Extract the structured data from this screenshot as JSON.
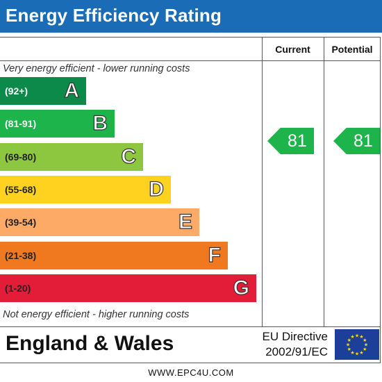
{
  "title": "Energy Efficiency Rating",
  "columns": {
    "current": "Current",
    "potential": "Potential"
  },
  "top_note": "Very energy efficient - lower running costs",
  "bottom_note": "Not energy efficient - higher running costs",
  "footer": {
    "country": "England & Wales",
    "directive_line1": "EU Directive",
    "directive_line2": "2002/91/EC",
    "website": "WWW.EPC4U.COM"
  },
  "chart_data": {
    "type": "bar",
    "categories": [
      "A",
      "B",
      "C",
      "D",
      "E",
      "F",
      "G"
    ],
    "bands": [
      {
        "letter": "A",
        "range": "(92+)",
        "color": "#0c8a4a",
        "text_color": "#ffffff"
      },
      {
        "letter": "B",
        "range": "(81-91)",
        "color": "#1cb44b",
        "text_color": "#ffffff"
      },
      {
        "letter": "C",
        "range": "(69-80)",
        "color": "#8dc63f",
        "text_color": "#222222"
      },
      {
        "letter": "D",
        "range": "(55-68)",
        "color": "#ffd21f",
        "text_color": "#222222"
      },
      {
        "letter": "E",
        "range": "(39-54)",
        "color": "#fcaa65",
        "text_color": "#222222"
      },
      {
        "letter": "F",
        "range": "(21-38)",
        "color": "#f0781e",
        "text_color": "#222222"
      },
      {
        "letter": "G",
        "range": "(1-20)",
        "color": "#e31d38",
        "text_color": "#222222"
      }
    ],
    "current_rating": 81,
    "potential_rating": 81,
    "rating_band": "B",
    "rating_color": "#1cb44b"
  },
  "colors": {
    "header": "#1b6cb6",
    "eu_flag": "#1c3f99",
    "eu_stars": "#ffdd00"
  }
}
